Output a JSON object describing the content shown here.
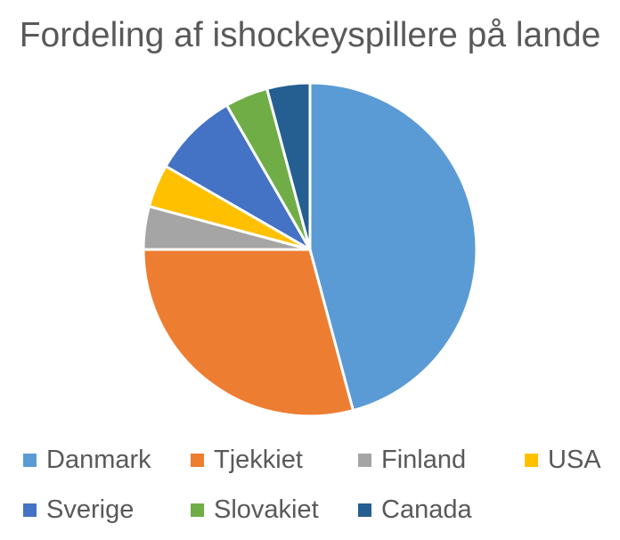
{
  "chart_data": {
    "type": "pie",
    "title": "Fordeling af ishockeyspillere på lande",
    "categories": [
      "Danmark",
      "Tjekkiet",
      "Finland",
      "USA",
      "Sverige",
      "Slovakiet",
      "Canada"
    ],
    "values": [
      11,
      7,
      1,
      1,
      2,
      1,
      1
    ],
    "colors": [
      "#5B9BD5",
      "#ED7D31",
      "#A5A5A5",
      "#FFC000",
      "#4472C4",
      "#70AD47",
      "#255E91"
    ],
    "legend_position": "bottom",
    "start_angle_deg": 0,
    "direction": "clockwise"
  }
}
